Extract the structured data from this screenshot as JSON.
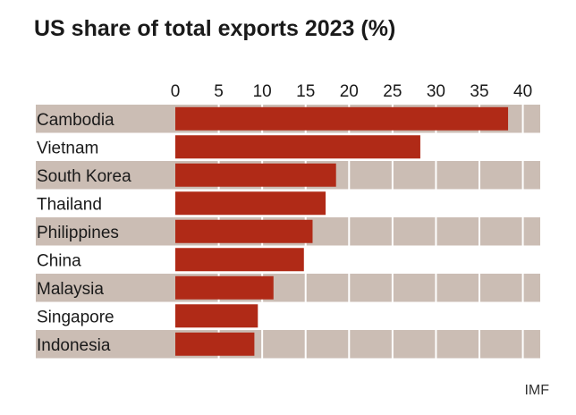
{
  "chart_data": {
    "type": "bar",
    "orientation": "horizontal",
    "title": "US share of total exports 2023 (%)",
    "source": "IMF",
    "categories": [
      "Cambodia",
      "Vietnam",
      "South Korea",
      "Thailand",
      "Philippines",
      "China",
      "Malaysia",
      "Singapore",
      "Indonesia"
    ],
    "values": [
      38.3,
      28.2,
      18.5,
      17.3,
      15.8,
      14.8,
      11.3,
      9.5,
      9.1
    ],
    "xticks": [
      0,
      5,
      10,
      15,
      20,
      25,
      30,
      35,
      40
    ],
    "xlim": [
      0,
      42
    ],
    "tick_position": "top",
    "grid": true,
    "colors": {
      "bar": "#b02a17",
      "band": "#cbbdb4",
      "grid": "#ffffff"
    }
  }
}
